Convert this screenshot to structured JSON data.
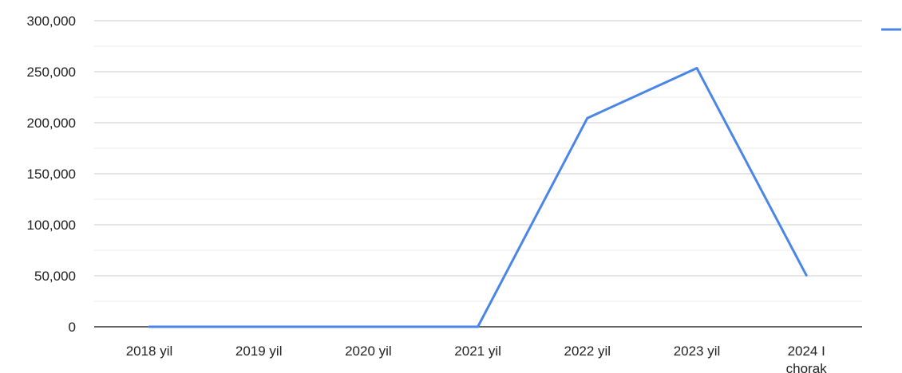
{
  "chart_data": {
    "type": "line",
    "title": "",
    "xlabel": "",
    "ylabel": "",
    "categories": [
      [
        "2018 yil"
      ],
      [
        "2019 yil"
      ],
      [
        "2020 yil"
      ],
      [
        "2021 yil"
      ],
      [
        "2022 yil"
      ],
      [
        "2023 yil"
      ],
      [
        "2024 I",
        "chorak"
      ]
    ],
    "series": [
      {
        "name": "",
        "color": "#4a86e8",
        "values": [
          0,
          0,
          0,
          0,
          204500,
          253500,
          50500
        ]
      }
    ],
    "ylim": [
      0,
      300000
    ],
    "yticks": [
      0,
      50000,
      100000,
      150000,
      200000,
      250000,
      300000
    ],
    "ytick_labels": [
      "0",
      "50,000",
      "100,000",
      "150,000",
      "200,000",
      "250,000",
      "300,000"
    ],
    "grid": true,
    "minor_grid": true,
    "legend": "right",
    "colors": {
      "grid_major": "#cccccc",
      "grid_minor": "#ebebeb",
      "baseline": "#333333",
      "text": "#222222"
    }
  }
}
